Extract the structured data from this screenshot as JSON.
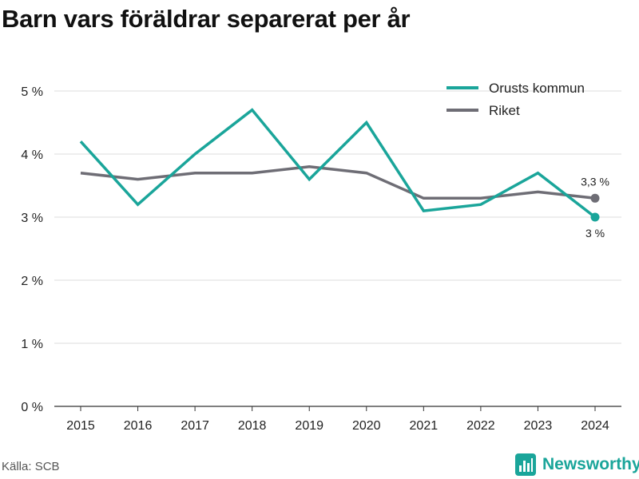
{
  "title": "Barn vars föräldrar separerat per år",
  "source": "Källa: SCB",
  "brand": {
    "name": "Newsworthy",
    "icon": "bar-chart-logo-icon",
    "color": "#1aa59a"
  },
  "chart_data": {
    "type": "line",
    "title": "Barn vars föräldrar separerat per år",
    "xlabel": "",
    "ylabel": "",
    "x": [
      "2015",
      "2016",
      "2017",
      "2018",
      "2019",
      "2020",
      "2021",
      "2022",
      "2023",
      "2024"
    ],
    "ylim": [
      0,
      5
    ],
    "yticks": [
      0,
      1,
      2,
      3,
      4,
      5
    ],
    "ytick_labels": [
      "0 %",
      "1 %",
      "2 %",
      "3 %",
      "4 %",
      "5 %"
    ],
    "grid": true,
    "legend_position": "top-right",
    "series": [
      {
        "name": "Orusts kommun",
        "color": "#1aa59a",
        "values": [
          4.2,
          3.2,
          4.0,
          4.7,
          3.6,
          4.5,
          3.1,
          3.2,
          3.7,
          3.0
        ],
        "end_label": "3 %"
      },
      {
        "name": "Riket",
        "color": "#6e6d75",
        "values": [
          3.7,
          3.6,
          3.7,
          3.7,
          3.8,
          3.7,
          3.3,
          3.3,
          3.4,
          3.3
        ],
        "end_label": "3,3 %"
      }
    ]
  }
}
